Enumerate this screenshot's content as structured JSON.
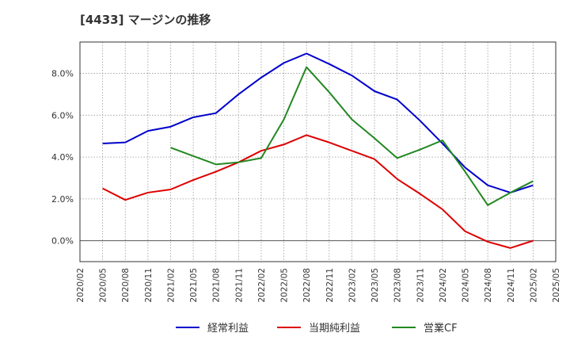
{
  "chart_data": {
    "type": "line",
    "title": "[4433]  マージンの推移",
    "xlabel": "",
    "ylabel": "",
    "x": [
      "2020/02",
      "2020/05",
      "2020/08",
      "2020/11",
      "2021/02",
      "2021/05",
      "2021/08",
      "2021/11",
      "2022/02",
      "2022/05",
      "2022/08",
      "2022/11",
      "2023/02",
      "2023/05",
      "2023/08",
      "2023/11",
      "2024/02",
      "2024/05",
      "2024/08",
      "2024/11",
      "2025/02",
      "2025/05"
    ],
    "ylim": [
      -1.0,
      9.5
    ],
    "yticks": [
      0.0,
      2.0,
      4.0,
      6.0,
      8.0
    ],
    "ytick_labels": [
      "0.0%",
      "2.0%",
      "4.0%",
      "6.0%",
      "8.0%"
    ],
    "grid": true,
    "legend_position": "bottom",
    "series": [
      {
        "name": "経常利益",
        "color": "#0000cc",
        "values": [
          null,
          4.65,
          4.7,
          5.25,
          5.45,
          5.9,
          6.1,
          7.0,
          7.8,
          8.5,
          8.95,
          8.45,
          7.9,
          7.15,
          6.75,
          5.75,
          4.65,
          3.5,
          2.65,
          2.3,
          2.65,
          null
        ]
      },
      {
        "name": "当期純利益",
        "color": "#dd0000",
        "values": [
          null,
          2.5,
          1.95,
          2.3,
          2.45,
          2.9,
          3.3,
          3.75,
          4.3,
          4.6,
          5.05,
          4.7,
          4.3,
          3.9,
          2.95,
          2.25,
          1.5,
          0.45,
          -0.05,
          -0.35,
          0.0,
          null
        ]
      },
      {
        "name": "営業CF",
        "color": "#228822",
        "values": [
          null,
          null,
          null,
          null,
          4.45,
          4.05,
          3.65,
          3.75,
          3.95,
          5.8,
          8.3,
          7.1,
          5.8,
          4.9,
          3.95,
          4.35,
          4.8,
          3.3,
          1.7,
          2.3,
          2.85,
          null
        ]
      }
    ]
  }
}
